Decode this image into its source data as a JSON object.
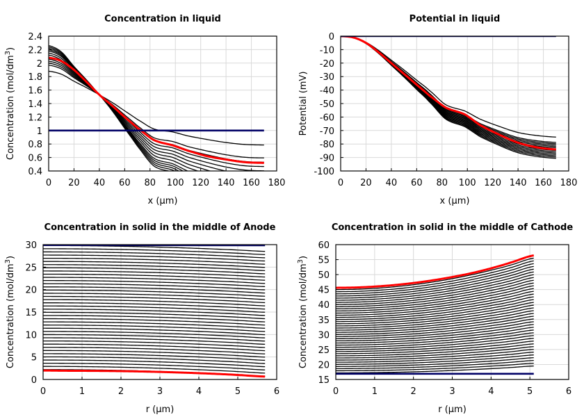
{
  "chart_data": [
    {
      "type": "line",
      "title": "Concentration in liquid",
      "xlabel": "x (µm)",
      "ylabel_main": "Concentration (mol/dm",
      "ylabel_sup": "3",
      "ylabel_close": ")",
      "xlim": [
        0,
        180
      ],
      "ylim": [
        0.4,
        2.4
      ],
      "xticks": [
        "0",
        "20",
        "40",
        "60",
        "80",
        "100",
        "120",
        "140",
        "160",
        "180"
      ],
      "yticks": [
        "0.4",
        "0.6",
        "0.8",
        "1",
        "1.2",
        "1.4",
        "1.6",
        "1.8",
        "2",
        "2.2",
        "2.4"
      ],
      "grid": true,
      "colors": {
        "family": "#000000",
        "highlight": "#ff0000",
        "initial": "#000066"
      },
      "family": {
        "x": [
          0,
          10,
          20,
          30,
          40,
          50,
          60,
          70,
          83,
          98,
          110,
          125,
          140,
          155,
          170
        ],
        "start_values": [
          1.88,
          1.97,
          2.0,
          2.03,
          2.06,
          2.09,
          2.12,
          2.15,
          2.18,
          2.2,
          2.22,
          2.24,
          2.26
        ],
        "pivot": {
          "x": 42,
          "y": 1.53
        },
        "shape": [
          1.0,
          0.93,
          0.78,
          0.56,
          0.3,
          0.0,
          -0.27,
          -0.55,
          -0.86,
          -0.95,
          -1.03,
          -1.11,
          -1.17,
          -1.21,
          -1.23
        ],
        "lower_ref_start": 2.0,
        "lower_ref_values": [
          2.0,
          1.94,
          1.8,
          1.67,
          1.53,
          1.38,
          1.21,
          1.04,
          0.85,
          0.79,
          0.71,
          0.64,
          0.58,
          0.54,
          0.53
        ]
      },
      "series": [
        {
          "x": [
            0,
            10,
            20,
            30,
            40,
            50,
            60,
            70,
            83,
            98,
            110,
            125,
            140,
            155,
            170
          ],
          "values": [
            2.08,
            2.03,
            1.9,
            1.72,
            1.53,
            1.37,
            1.2,
            1.04,
            0.86,
            0.78,
            0.7,
            0.62,
            0.57,
            0.53,
            0.52
          ],
          "role": "highlight"
        },
        {
          "x": [
            0,
            170
          ],
          "values": [
            1.0,
            1.0
          ],
          "role": "initial"
        }
      ]
    },
    {
      "type": "line",
      "title": "Potential in liquid",
      "xlabel": "x (µm)",
      "ylabel_main": "Potential (mV)",
      "ylabel_sup": "",
      "ylabel_close": "",
      "xlim": [
        0,
        180
      ],
      "ylim": [
        -100,
        0
      ],
      "xticks": [
        "0",
        "20",
        "40",
        "60",
        "80",
        "100",
        "120",
        "140",
        "160",
        "180"
      ],
      "yticks": [
        "-100",
        "-90",
        "-80",
        "-70",
        "-60",
        "-50",
        "-40",
        "-30",
        "-20",
        "-10",
        "0"
      ],
      "grid": true,
      "colors": {
        "family": "#000000",
        "highlight": "#ff0000",
        "initial": "#000066"
      },
      "family": {
        "x": [
          0,
          10,
          20,
          30,
          40,
          50,
          60,
          70,
          83,
          98,
          110,
          125,
          140,
          155,
          170
        ],
        "end_values": [
          -76,
          -80,
          -81,
          -82,
          -83,
          -84,
          -85,
          -86,
          -87,
          -88,
          -89,
          -90,
          -91,
          -92
        ],
        "shape": [
          0.0,
          0.012,
          0.06,
          0.14,
          0.235,
          0.33,
          0.43,
          0.53,
          0.67,
          0.73,
          0.81,
          0.88,
          0.94,
          0.97,
          0.985
        ],
        "kink_at": 8
      },
      "series": [
        {
          "x": [
            0,
            10,
            20,
            30,
            40,
            50,
            60,
            70,
            83,
            98,
            110,
            125,
            140,
            155,
            170
          ],
          "values": [
            0,
            -1,
            -5,
            -12,
            -20,
            -28,
            -36,
            -44,
            -53,
            -58,
            -66,
            -73,
            -79,
            -82.5,
            -84
          ],
          "role": "highlight"
        },
        {
          "x": [
            0,
            170
          ],
          "values": [
            0,
            0
          ],
          "role": "initial"
        }
      ]
    },
    {
      "type": "line",
      "title": "Concentration in solid in the middle of Anode",
      "xlabel": "r (µm)",
      "ylabel_main": "Concentration (mol/dm",
      "ylabel_sup": "3",
      "ylabel_close": ")",
      "xlim": [
        0,
        6
      ],
      "ylim": [
        0,
        30
      ],
      "xticks": [
        "0",
        "1",
        "2",
        "3",
        "4",
        "5",
        "6"
      ],
      "yticks": [
        "0",
        "5",
        "10",
        "15",
        "20",
        "25",
        "30"
      ],
      "grid": true,
      "colors": {
        "family": "#000000",
        "highlight": "#ff0000",
        "initial": "#000066"
      },
      "family": {
        "r_end": 5.7,
        "start_top": 29.8,
        "start_bottom": 2.2,
        "count": 40,
        "end_drop_top": 1.3,
        "end_drop_bottom": 1.5
      },
      "series": [
        {
          "x": [
            0,
            0.5,
            1,
            1.5,
            2,
            2.5,
            3,
            3.5,
            4,
            4.5,
            5,
            5.7
          ],
          "values": [
            2.0,
            1.95,
            1.93,
            1.9,
            1.85,
            1.78,
            1.68,
            1.55,
            1.4,
            1.22,
            1.0,
            0.65
          ],
          "role": "highlight"
        },
        {
          "x": [
            0,
            5.7
          ],
          "values": [
            29.9,
            29.85
          ],
          "role": "initial"
        }
      ]
    },
    {
      "type": "line",
      "title": "Concentration in solid in the middle of Cathode",
      "xlabel": "r (µm)",
      "ylabel_main": "Concentration (mol/dm",
      "ylabel_sup": "3",
      "ylabel_close": ")",
      "xlim": [
        0,
        6
      ],
      "ylim": [
        15,
        60
      ],
      "xticks": [
        "0",
        "1",
        "2",
        "3",
        "4",
        "5",
        "6"
      ],
      "yticks": [
        "15",
        "20",
        "25",
        "30",
        "35",
        "40",
        "45",
        "50",
        "55",
        "60"
      ],
      "grid": true,
      "colors": {
        "family": "#000000",
        "highlight": "#ff0000",
        "initial": "#000066"
      },
      "family": {
        "r_end": 5.1,
        "count": 40,
        "start_bottom": 17.2,
        "start_top": 45.0,
        "end_bottom": 19.5,
        "end_top": 55.5
      },
      "series": [
        {
          "x": [
            0,
            0.5,
            1,
            1.5,
            2,
            2.5,
            3,
            3.5,
            4,
            4.5,
            5.1
          ],
          "values": [
            45.6,
            45.7,
            46.0,
            46.5,
            47.2,
            48.1,
            49.2,
            50.5,
            52.1,
            54.0,
            56.4
          ],
          "role": "highlight"
        },
        {
          "x": [
            0,
            5.1
          ],
          "values": [
            16.9,
            16.9
          ],
          "role": "initial"
        }
      ]
    }
  ]
}
